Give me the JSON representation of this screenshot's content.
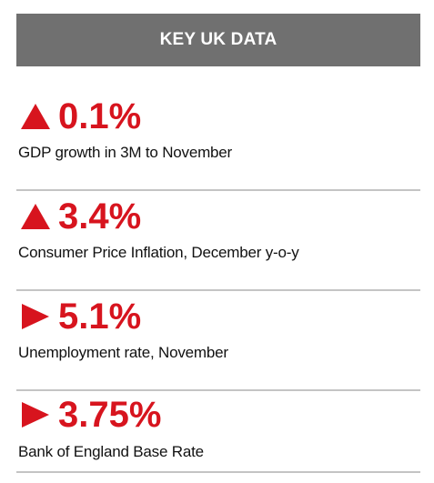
{
  "header": {
    "title": "KEY UK DATA"
  },
  "colors": {
    "accent": "#d7141e",
    "header_bg": "#707070",
    "divider": "#c4c4c4"
  },
  "stats": [
    {
      "icon": "triangle-up-icon",
      "value": "0.1%",
      "label": "GDP growth in 3M to November"
    },
    {
      "icon": "triangle-up-icon",
      "value": "3.4%",
      "label": "Consumer Price Inflation, December y-o-y"
    },
    {
      "icon": "triangle-right-icon",
      "value": "5.1%",
      "label": "Unemployment rate, November"
    },
    {
      "icon": "triangle-right-icon",
      "value": "3.75%",
      "label": "Bank of England Base Rate"
    }
  ]
}
